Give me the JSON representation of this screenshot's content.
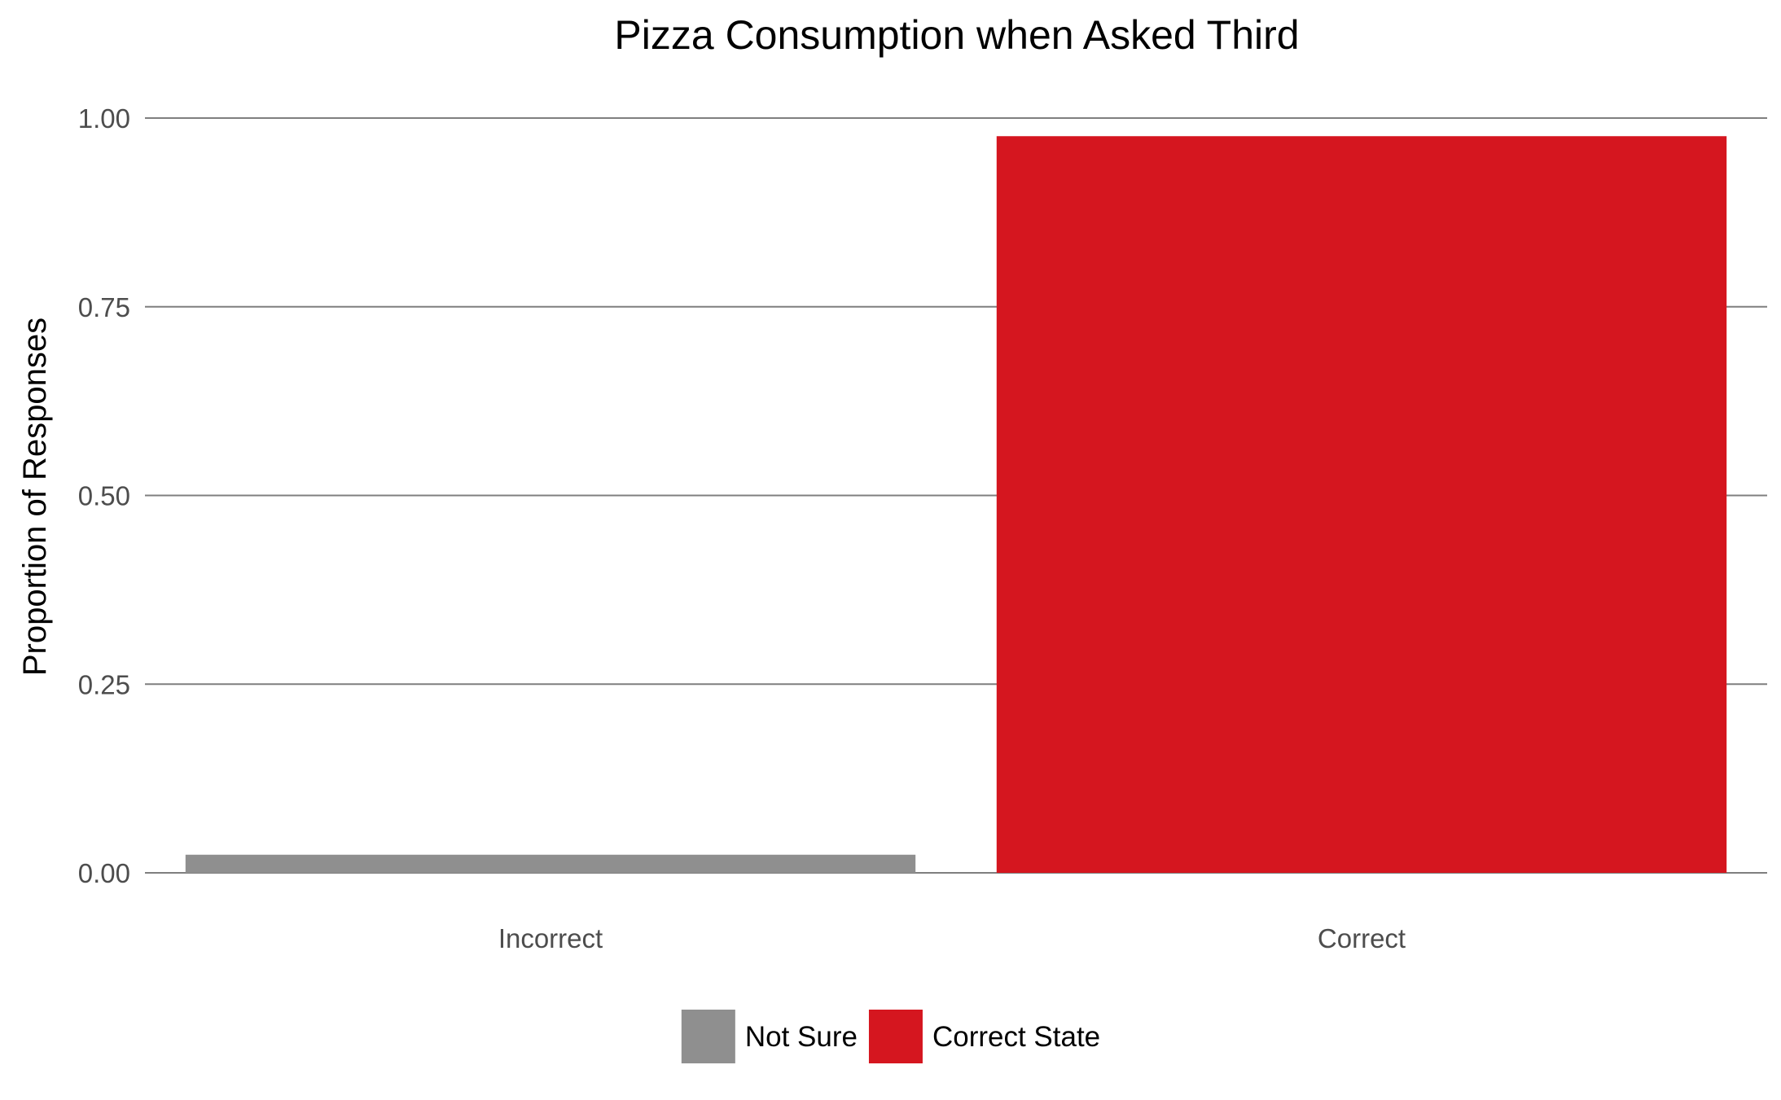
{
  "chart_data": {
    "type": "bar",
    "title": "Pizza Consumption when Asked Third",
    "xlabel": "",
    "ylabel": "Proportion of Responses",
    "ylim": [
      0,
      1
    ],
    "yticks": [
      "0.00",
      "0.25",
      "0.50",
      "0.75",
      "1.00"
    ],
    "ytick_values": [
      0,
      0.25,
      0.5,
      0.75,
      1.0
    ],
    "categories": [
      "Incorrect",
      "Correct"
    ],
    "values": [
      0.024,
      0.976
    ],
    "bar_colors": [
      "#8f8f8f",
      "#d5161f"
    ],
    "grid": true,
    "legend": {
      "position": "bottom",
      "entries": [
        {
          "label": "Not Sure",
          "color": "#8f8f8f"
        },
        {
          "label": "Correct State",
          "color": "#d5161f"
        }
      ]
    }
  }
}
